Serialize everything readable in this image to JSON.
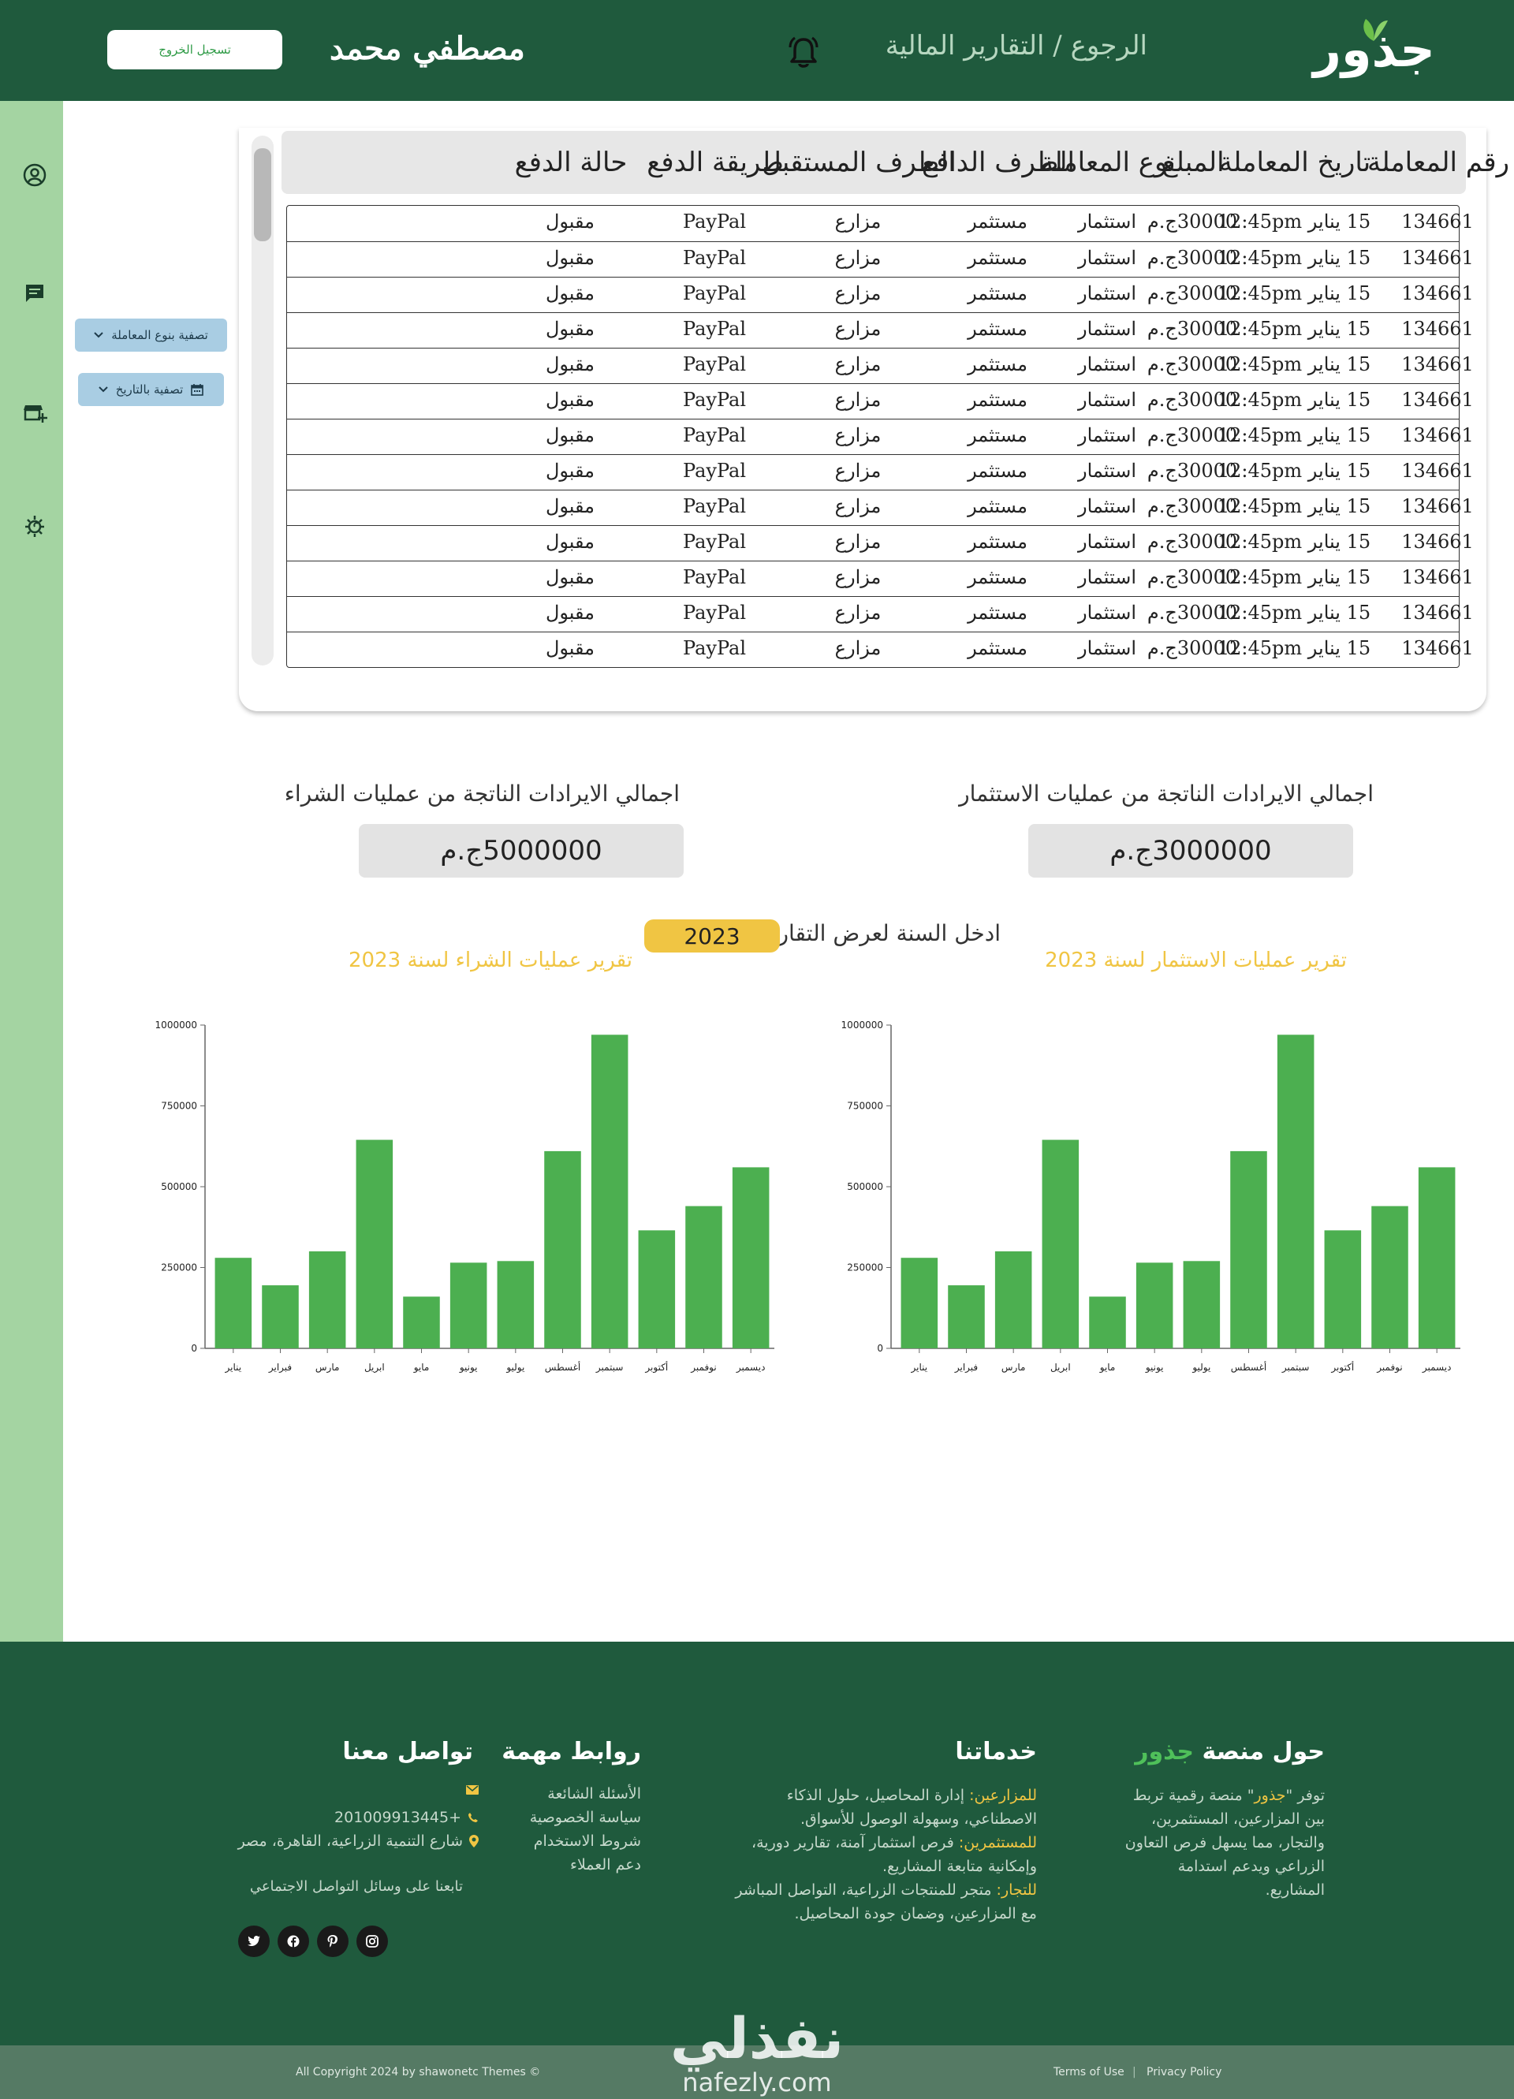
{
  "header": {
    "logo_text": "جذور",
    "breadcrumb": "الرجوع / التقارير المالية",
    "username": "مصطفي محمد",
    "logout_label": "تسجيل الخروج"
  },
  "sidebar": {
    "icons": [
      "user-circle-icon",
      "chat-icon",
      "store-add-icon",
      "settings-plant-icon"
    ]
  },
  "filters": {
    "by_type_label": "تصفية بنوع المعاملة",
    "by_date_label": "تصفية بالتاريخ"
  },
  "table": {
    "columns": [
      "رقم المعاملة",
      "تاريخ المعاملة",
      "المبلغ",
      "نوع المعاملة",
      "الطرف الدافع",
      "الطرف المستقبل",
      "طريقة الدفع",
      "حالة الدفع"
    ],
    "rows": [
      [
        "134661",
        "15 يناير 12:45pm",
        "30000ج.م",
        "استثمار",
        "مستثمر",
        "مزارع",
        "PayPal",
        "مقبول"
      ],
      [
        "134661",
        "15 يناير 12:45pm",
        "30000ج.م",
        "استثمار",
        "مستثمر",
        "مزارع",
        "PayPal",
        "مقبول"
      ],
      [
        "134661",
        "15 يناير 12:45pm",
        "30000ج.م",
        "استثمار",
        "مستثمر",
        "مزارع",
        "PayPal",
        "مقبول"
      ],
      [
        "134661",
        "15 يناير 12:45pm",
        "30000ج.م",
        "استثمار",
        "مستثمر",
        "مزارع",
        "PayPal",
        "مقبول"
      ],
      [
        "134661",
        "15 يناير 12:45pm",
        "30000ج.م",
        "استثمار",
        "مستثمر",
        "مزارع",
        "PayPal",
        "مقبول"
      ],
      [
        "134661",
        "15 يناير 12:45pm",
        "30000ج.م",
        "استثمار",
        "مستثمر",
        "مزارع",
        "PayPal",
        "مقبول"
      ],
      [
        "134661",
        "15 يناير 12:45pm",
        "30000ج.م",
        "استثمار",
        "مستثمر",
        "مزارع",
        "PayPal",
        "مقبول"
      ],
      [
        "134661",
        "15 يناير 12:45pm",
        "30000ج.م",
        "استثمار",
        "مستثمر",
        "مزارع",
        "PayPal",
        "مقبول"
      ],
      [
        "134661",
        "15 يناير 12:45pm",
        "30000ج.م",
        "استثمار",
        "مستثمر",
        "مزارع",
        "PayPal",
        "مقبول"
      ],
      [
        "134661",
        "15 يناير 12:45pm",
        "30000ج.م",
        "استثمار",
        "مستثمر",
        "مزارع",
        "PayPal",
        "مقبول"
      ],
      [
        "134661",
        "15 يناير 12:45pm",
        "30000ج.م",
        "استثمار",
        "مستثمر",
        "مزارع",
        "PayPal",
        "مقبول"
      ],
      [
        "134661",
        "15 يناير 12:45pm",
        "30000ج.م",
        "استثمار",
        "مستثمر",
        "مزارع",
        "PayPal",
        "مقبول"
      ],
      [
        "134661",
        "15 يناير 12:45pm",
        "30000ج.م",
        "استثمار",
        "مستثمر",
        "مزارع",
        "PayPal",
        "مقبول"
      ]
    ]
  },
  "totals": {
    "investment_title": "اجمالي الايرادات الناتجة من عمليات الاستثمار",
    "investment_value": "3000000ج.م",
    "purchase_title": "اجمالي الايرادات الناتجة من عمليات الشراء",
    "purchase_value": "5000000ج.م"
  },
  "year_filter": {
    "label": "ادخل السنة لعرض التقارير",
    "value": "2023"
  },
  "chart_data": [
    {
      "type": "bar",
      "title": "تقرير عمليات الاستثمار لسنة 2023",
      "categories": [
        "يناير",
        "فبراير",
        "مارس",
        "ابريل",
        "مايو",
        "يونيو",
        "يوليو",
        "أغسطس",
        "سبتمبر",
        "أكتوبر",
        "نوفمبر",
        "ديسمبر"
      ],
      "values": [
        280000,
        195000,
        300000,
        645000,
        160000,
        265000,
        270000,
        610000,
        970000,
        365000,
        440000,
        560000
      ],
      "yticks": [
        0,
        250000,
        500000,
        750000,
        1000000
      ],
      "ylim": [
        0,
        1000000
      ],
      "color": "#4caf50"
    },
    {
      "type": "bar",
      "title": "تقرير عمليات الشراء لسنة 2023",
      "categories": [
        "يناير",
        "فبراير",
        "مارس",
        "ابريل",
        "مايو",
        "يونيو",
        "يوليو",
        "أغسطس",
        "سبتمبر",
        "أكتوبر",
        "نوفمبر",
        "ديسمبر"
      ],
      "values": [
        280000,
        195000,
        300000,
        645000,
        160000,
        265000,
        270000,
        610000,
        970000,
        365000,
        440000,
        560000
      ],
      "yticks": [
        0,
        250000,
        500000,
        750000,
        1000000
      ],
      "ylim": [
        0,
        1000000
      ],
      "color": "#4caf50"
    }
  ],
  "footer": {
    "about": {
      "heading_prefix": "حول منصة",
      "heading_brand": "جذور",
      "text_1": "توفر \"",
      "brand": "جذور",
      "text_2": "\" منصة رقمية تربط بين المزارعين، المستثمرين، والتجار، مما يسهل فرص التعاون الزراعي ويدعم استدامة المشاريع."
    },
    "services": {
      "heading": "خدماتنا",
      "farmers_label": "للمزارعين:",
      "farmers_text": " إدارة المحاصيل، حلول الذكاء الاصطناعي، وسهولة الوصول للأسواق.",
      "investors_label": "للمستثمرين:",
      "investors_text": " فرص استثمار آمنة، تقارير دورية، وإمكانية متابعة المشاريع.",
      "traders_label": "للتجار:",
      "traders_text": " متجر للمنتجات الزراعية، التواصل المباشر مع المزارعين، وضمان جودة المحاصيل."
    },
    "links": {
      "heading": "روابط مهمة",
      "items": [
        "الأسئلة الشائعة",
        "سياسة الخصوصية",
        "شروط الاستخدام",
        "دعم العملاء"
      ]
    },
    "contact": {
      "heading": "تواصل معنا",
      "phone": "+201009913445",
      "address": "شارع التنمية الزراعية، القاهرة، مصر",
      "social_label": "تابعنا على وسائل التواصل الاجتماعي",
      "social_icons": [
        "twitter-icon",
        "facebook-icon",
        "pinterest-icon",
        "instagram-icon"
      ]
    },
    "copyright": "© All Copyright 2024 by shawonetc Themes",
    "terms": "Terms of Use",
    "privacy": "Privacy Policy",
    "watermark_text": "نفذلي",
    "watermark_domain": "nafezly.com"
  },
  "colors": {
    "primary_dark": "#1f5a3d",
    "sidebar": "#a4d4a2",
    "bar": "#4caf50",
    "accent_yellow": "#f0c543",
    "filter_button": "#a9cde3"
  }
}
